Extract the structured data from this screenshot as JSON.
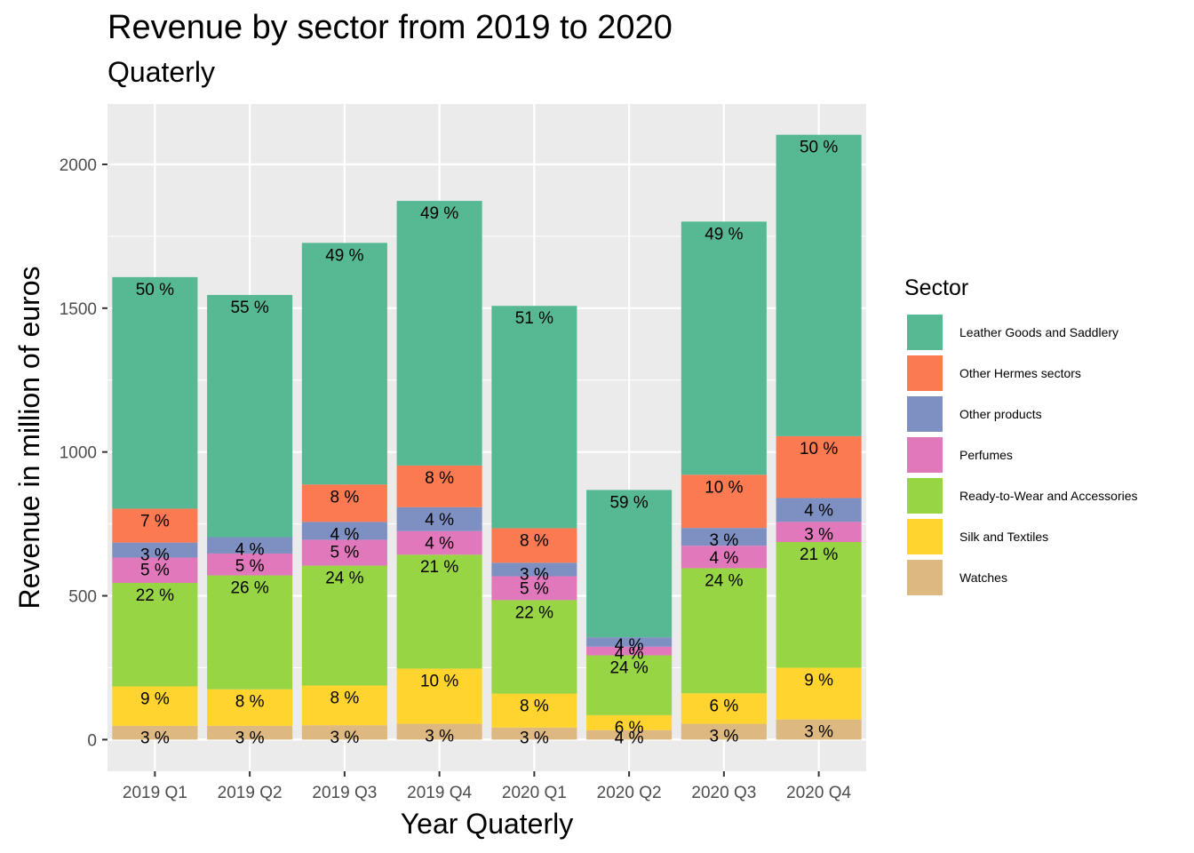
{
  "chart_data": {
    "type": "bar",
    "stacked": true,
    "title": "Revenue by sector from 2019 to 2020",
    "subtitle": "Quaterly",
    "xlabel": "Year Quaterly",
    "ylabel": "Revenue in million of euros",
    "ylim": [
      -110,
      2210
    ],
    "yticks": [
      0,
      500,
      1000,
      1500,
      2000
    ],
    "grid": true,
    "legend_position": "right",
    "legend_title": "Sector",
    "categories": [
      "2019 Q1",
      "2019 Q2",
      "2019 Q3",
      "2019 Q4",
      "2020 Q1",
      "2020 Q2",
      "2020 Q3",
      "2020 Q4"
    ],
    "series": [
      {
        "name": "Watches",
        "color": "#DEB881",
        "values": [
          48,
          48,
          50,
          55,
          42,
          33,
          55,
          70
        ],
        "labels": [
          "3 %",
          "3 %",
          "3 %",
          "3 %",
          "3 %",
          "4 %",
          "3 %",
          "3 %"
        ]
      },
      {
        "name": "Silk and Textiles",
        "color": "#FFD42E",
        "values": [
          137,
          127,
          138,
          192,
          118,
          52,
          106,
          180
        ],
        "labels": [
          "9 %",
          "8 %",
          "8 %",
          "10 %",
          "8 %",
          "6 %",
          "6 %",
          "9 %"
        ]
      },
      {
        "name": "Ready-to-Wear and Accessories",
        "color": "#98D544",
        "values": [
          360,
          396,
          417,
          396,
          325,
          208,
          435,
          437
        ],
        "labels": [
          "22 %",
          "26 %",
          "24 %",
          "21 %",
          "22 %",
          "24 %",
          "24 %",
          "21 %"
        ]
      },
      {
        "name": "Perfumes",
        "color": "#E078BB",
        "values": [
          88,
          76,
          90,
          82,
          83,
          30,
          78,
          70
        ],
        "labels": [
          "5 %",
          "5 %",
          "5 %",
          "4 %",
          "5 %",
          "4 %",
          "4 %",
          "3 %"
        ]
      },
      {
        "name": "Other products",
        "color": "#7E90C2",
        "values": [
          52,
          57,
          62,
          83,
          47,
          33,
          62,
          83
        ],
        "labels": [
          "3 %",
          "4 %",
          "4 %",
          "4 %",
          "3 %",
          "4 %",
          "3 %",
          "4 %"
        ]
      },
      {
        "name": "Other Hermes sectors",
        "color": "#FB7A52",
        "values": [
          118,
          0,
          130,
          145,
          120,
          0,
          185,
          215
        ],
        "labels": [
          "7 %",
          "",
          "8 %",
          "8 %",
          "8 %",
          "",
          "10 %",
          "10 %"
        ]
      },
      {
        "name": "Leather Goods and Saddlery",
        "color": "#57B993",
        "values": [
          805,
          842,
          840,
          920,
          773,
          512,
          880,
          1048
        ],
        "labels": [
          "50 %",
          "55 %",
          "49 %",
          "49 %",
          "51 %",
          "59 %",
          "49 %",
          "50 %"
        ]
      }
    ]
  }
}
